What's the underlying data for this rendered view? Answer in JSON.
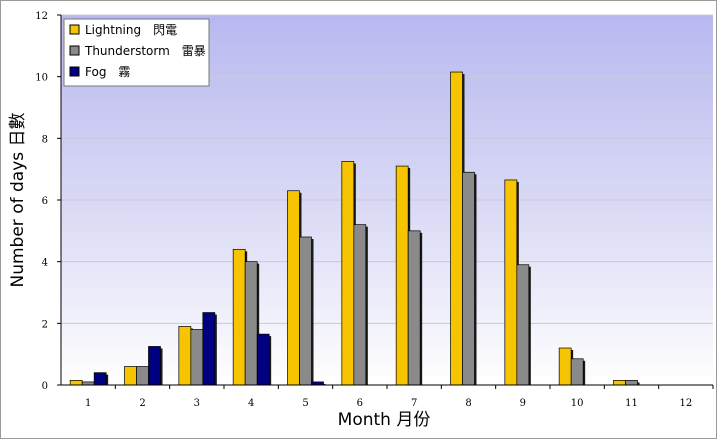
{
  "chart_data": {
    "type": "bar",
    "title": "",
    "xlabel": "Month 月份",
    "ylabel": "Number of days 日數",
    "categories": [
      "1",
      "2",
      "3",
      "4",
      "5",
      "6",
      "7",
      "8",
      "9",
      "10",
      "11",
      "12"
    ],
    "ylim": [
      0,
      12
    ],
    "yticks": [
      0,
      2,
      4,
      6,
      8,
      10,
      12
    ],
    "grid": true,
    "legend_position": "top-left",
    "series": [
      {
        "name": "Lightning　閃電",
        "color": "#f6c400",
        "values": [
          0.15,
          0.6,
          1.9,
          4.4,
          6.3,
          7.25,
          7.1,
          10.15,
          6.65,
          1.2,
          0.15,
          0
        ]
      },
      {
        "name": "Thunderstorm　雷暴",
        "color": "#8a8a8a",
        "values": [
          0.1,
          0.6,
          1.8,
          4.0,
          4.8,
          5.2,
          5.0,
          6.9,
          3.9,
          0.85,
          0.15,
          0
        ]
      },
      {
        "name": "Fog　霧",
        "color": "#000080",
        "values": [
          0.4,
          1.25,
          2.35,
          1.65,
          0.1,
          0,
          0,
          0,
          0,
          0,
          0,
          0
        ]
      }
    ]
  }
}
